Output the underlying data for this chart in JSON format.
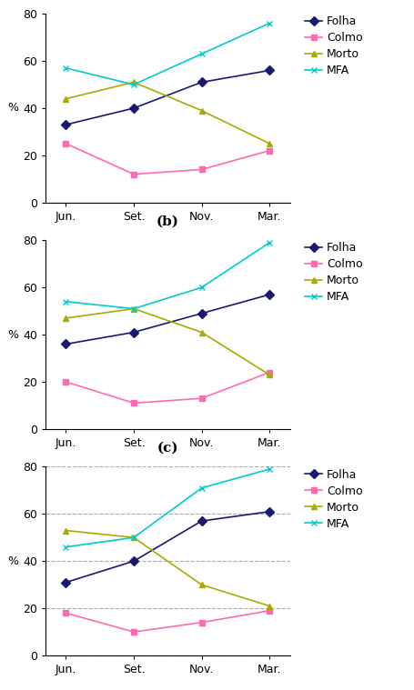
{
  "x_labels": [
    "Jun.",
    "Set.",
    "Nov.",
    "Mar."
  ],
  "panels": [
    {
      "label": "(b)",
      "Folha": [
        33,
        40,
        51,
        56
      ],
      "Colmo": [
        25,
        12,
        14,
        22
      ],
      "Morto": [
        44,
        51,
        39,
        25
      ],
      "MFA": [
        57,
        50,
        63,
        76
      ],
      "grid": false
    },
    {
      "label": "(c)",
      "Folha": [
        36,
        41,
        49,
        57
      ],
      "Colmo": [
        20,
        11,
        13,
        24
      ],
      "Morto": [
        47,
        51,
        41,
        23
      ],
      "MFA": [
        54,
        51,
        60,
        79
      ],
      "grid": false
    },
    {
      "label": "",
      "Folha": [
        31,
        40,
        57,
        61
      ],
      "Colmo": [
        18,
        10,
        14,
        19
      ],
      "Morto": [
        53,
        50,
        30,
        21
      ],
      "MFA": [
        46,
        50,
        71,
        79
      ],
      "grid": true
    }
  ],
  "colors": {
    "Folha": "#191970",
    "Colmo": "#FF69B4",
    "Morto": "#AAAA00",
    "MFA": "#00CCCC"
  },
  "marker": {
    "Folha": "D",
    "Colmo": "s",
    "Morto": "^",
    "MFA": "x"
  },
  "ylim": [
    0,
    80
  ],
  "yticks": [
    0,
    20,
    40,
    60,
    80
  ],
  "ylabel": "%",
  "legend_labels": [
    "Folha",
    "Colmo",
    "Morto",
    "MFA"
  ],
  "markersize": 5,
  "linewidth": 1.2,
  "label_fontsize": 11,
  "tick_fontsize": 9,
  "legend_fontsize": 9
}
